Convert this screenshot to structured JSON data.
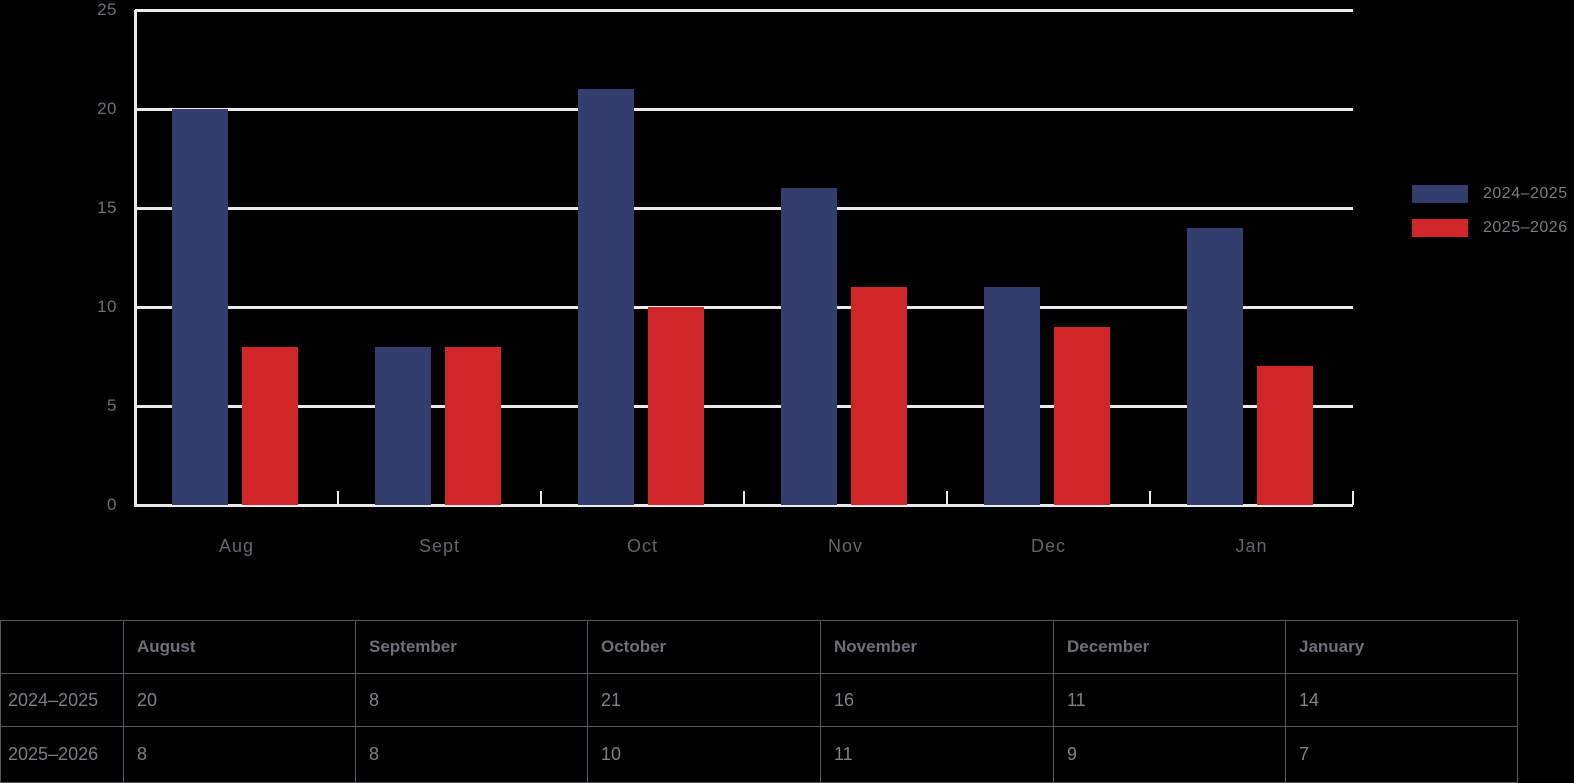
{
  "chart_data": {
    "type": "bar",
    "categories": [
      "Aug",
      "Sept",
      "Oct",
      "Nov",
      "Dec",
      "Jan"
    ],
    "series": [
      {
        "name": "2024–2025",
        "color": "#343e6e",
        "values": [
          20,
          8,
          21,
          16,
          11,
          14
        ]
      },
      {
        "name": "2025–2026",
        "color": "#d12628",
        "values": [
          8,
          8,
          10,
          11,
          9,
          7
        ]
      }
    ],
    "title": "",
    "xlabel": "",
    "ylabel": "",
    "ylim": [
      0,
      25
    ],
    "yticks": [
      0,
      5,
      10,
      15,
      20,
      25
    ],
    "grid": "horizontal",
    "gridline_color": "#ebebed",
    "background_color": "#000000",
    "legend_position": "right"
  },
  "legend": {
    "entries": [
      {
        "label": "2024–2025",
        "color": "#343e6e"
      },
      {
        "label": "2025–2026",
        "color": "#d12628"
      }
    ]
  },
  "table": {
    "column_headers": [
      "",
      "August",
      "September",
      "October",
      "November",
      "December",
      "January"
    ],
    "rows": [
      {
        "label": "2024–2025",
        "values": [
          "20",
          "8",
          "21",
          "16",
          "11",
          "14"
        ]
      },
      {
        "label": "2025–2026",
        "values": [
          "8",
          "8",
          "10",
          "11",
          "9",
          "7"
        ]
      }
    ]
  }
}
